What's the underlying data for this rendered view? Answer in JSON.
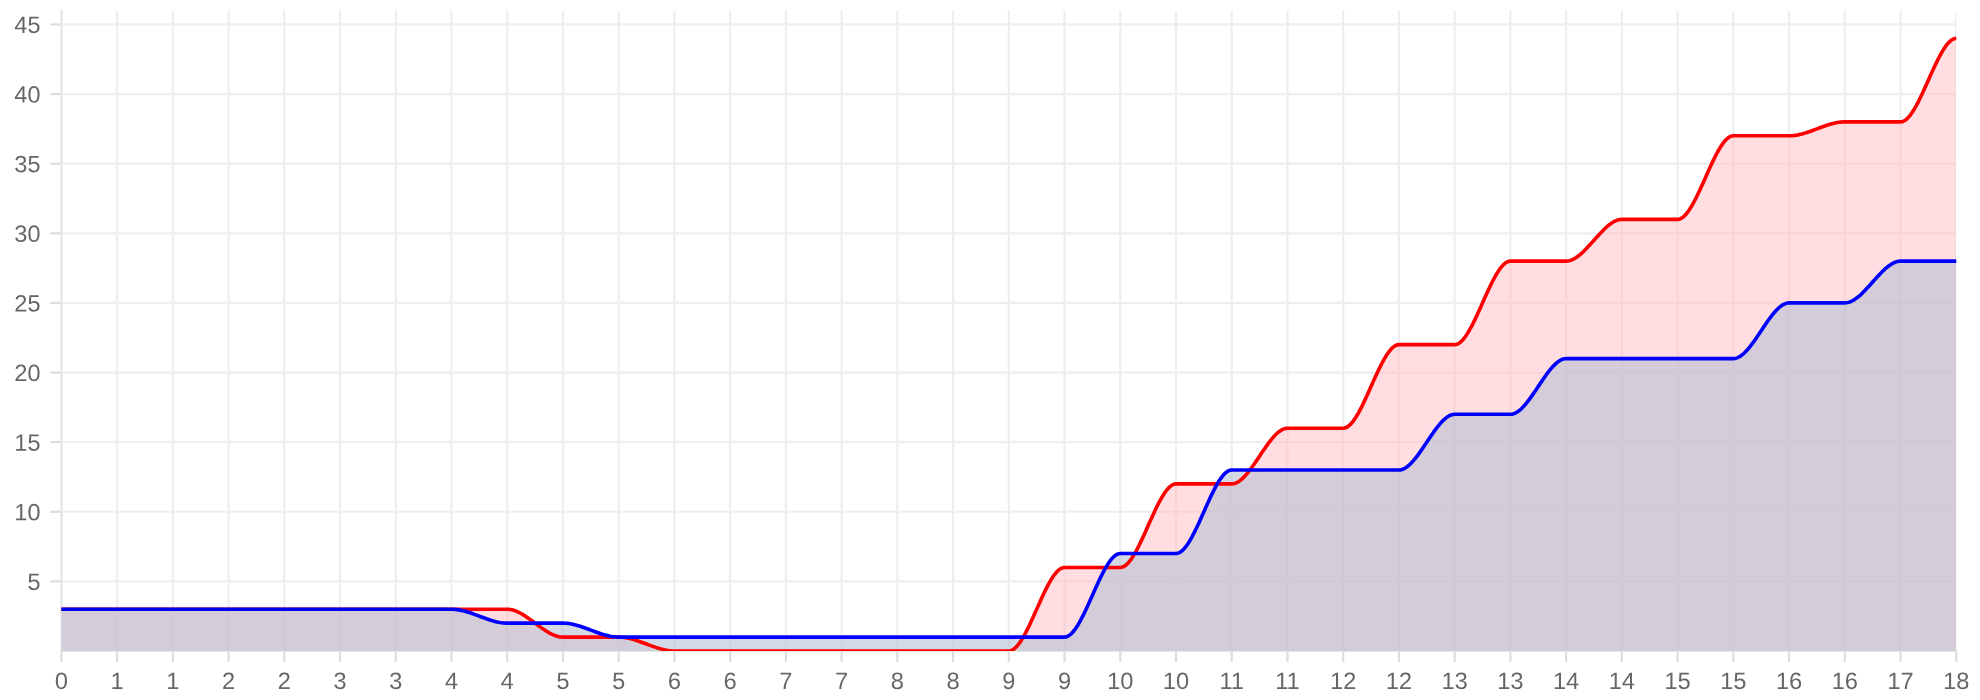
{
  "chart_data": {
    "type": "area",
    "ylim": [
      0,
      46
    ],
    "yticks": [
      5,
      10,
      15,
      20,
      25,
      30,
      35,
      40,
      45
    ],
    "categories": [
      "0",
      "1",
      "1",
      "2",
      "2",
      "3",
      "3",
      "4",
      "4",
      "5",
      "5",
      "6",
      "6",
      "7",
      "7",
      "8",
      "8",
      "9",
      "9",
      "10",
      "10",
      "11",
      "11",
      "12",
      "12",
      "13",
      "13",
      "14",
      "14",
      "15",
      "15",
      "16",
      "16",
      "17",
      "18"
    ],
    "grid": true,
    "legend": false,
    "marker": "none",
    "line_style": "solid",
    "series": [
      {
        "color": "#ff0000",
        "values": [
          3,
          3,
          3,
          3,
          3,
          3,
          3,
          3,
          3,
          1,
          1,
          0,
          0,
          0,
          0,
          0,
          0,
          0,
          6,
          6,
          12,
          12,
          16,
          16,
          22,
          22,
          28,
          28,
          31,
          31,
          37,
          37,
          38,
          38,
          44
        ]
      },
      {
        "color": "#0000ff",
        "values": [
          3,
          3,
          3,
          3,
          3,
          3,
          3,
          3,
          2,
          2,
          1,
          1,
          1,
          1,
          1,
          1,
          1,
          1,
          1,
          7,
          7,
          13,
          13,
          13,
          13,
          17,
          17,
          21,
          21,
          21,
          21,
          25,
          25,
          28,
          28
        ]
      }
    ]
  }
}
